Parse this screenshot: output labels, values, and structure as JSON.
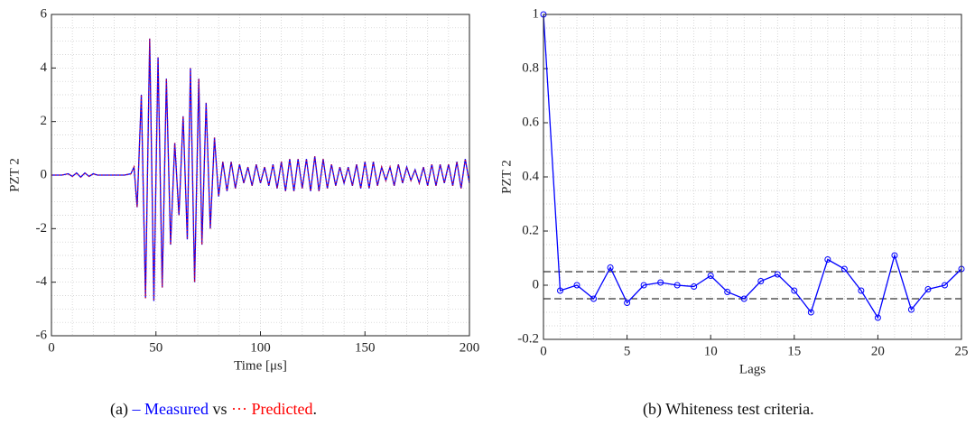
{
  "chart_data": [
    {
      "type": "line",
      "xlabel": "Time [μs]",
      "ylabel": "PZT 2",
      "x": [
        0,
        5,
        8,
        10,
        12,
        14,
        16,
        18,
        20,
        22,
        25,
        30,
        35,
        38,
        39.5,
        41,
        43,
        45,
        47,
        49,
        51,
        53,
        55,
        57,
        59,
        61,
        63,
        65,
        66.5,
        68.5,
        70.5,
        72,
        74,
        76,
        78,
        80,
        82,
        84,
        86,
        88,
        90,
        92,
        94,
        96,
        98,
        100,
        102,
        104,
        106,
        108,
        110,
        112,
        114,
        116,
        118,
        120,
        122,
        124,
        126,
        128,
        130,
        132,
        134,
        136,
        138,
        140,
        142,
        144,
        146,
        148,
        150,
        152,
        154,
        156,
        158,
        160,
        162,
        164,
        166,
        168,
        170,
        172,
        174,
        176,
        178,
        180,
        182,
        184,
        186,
        188,
        190,
        192,
        194,
        196,
        198,
        200
      ],
      "series": [
        {
          "name": "Measured",
          "color": "#0000ff",
          "dash": "solid",
          "values": [
            0,
            0,
            0.05,
            -0.05,
            0.08,
            -0.08,
            0.08,
            -0.05,
            0.05,
            0,
            0,
            0,
            0,
            0.05,
            0.3,
            -1.2,
            3.0,
            -4.6,
            5.1,
            -4.7,
            4.4,
            -4.2,
            3.6,
            -2.6,
            1.2,
            -1.5,
            2.2,
            -2.4,
            4.0,
            -4.0,
            3.6,
            -2.6,
            2.7,
            -2.0,
            1.4,
            -0.8,
            0.5,
            -0.6,
            0.5,
            -0.5,
            0.4,
            -0.3,
            0.3,
            -0.4,
            0.4,
            -0.3,
            0.3,
            -0.4,
            0.4,
            -0.5,
            0.5,
            -0.6,
            0.6,
            -0.6,
            0.6,
            -0.5,
            0.6,
            -0.6,
            0.7,
            -0.6,
            0.6,
            -0.5,
            0.4,
            -0.4,
            0.3,
            -0.3,
            0.3,
            -0.4,
            0.4,
            -0.5,
            0.5,
            -0.5,
            0.5,
            -0.4,
            0.3,
            -0.2,
            0.3,
            -0.4,
            0.4,
            -0.3,
            0.3,
            -0.2,
            0.2,
            -0.3,
            0.3,
            -0.4,
            0.4,
            -0.4,
            0.4,
            -0.3,
            0.4,
            -0.4,
            0.5,
            -0.5,
            0.6,
            -0.3
          ]
        },
        {
          "name": "Predicted",
          "color": "#ff0000",
          "dash": "dotted",
          "values": [
            0,
            0,
            0.05,
            -0.05,
            0.08,
            -0.08,
            0.08,
            -0.05,
            0.05,
            0,
            0,
            0,
            0,
            0.05,
            0.3,
            -1.2,
            3.0,
            -4.6,
            5.1,
            -4.7,
            4.4,
            -4.2,
            3.6,
            -2.6,
            1.2,
            -1.5,
            2.2,
            -2.4,
            4.0,
            -4.0,
            3.6,
            -2.6,
            2.7,
            -2.0,
            1.4,
            -0.8,
            0.5,
            -0.6,
            0.5,
            -0.5,
            0.4,
            -0.3,
            0.3,
            -0.4,
            0.4,
            -0.3,
            0.3,
            -0.4,
            0.4,
            -0.5,
            0.5,
            -0.6,
            0.6,
            -0.6,
            0.6,
            -0.5,
            0.6,
            -0.6,
            0.7,
            -0.6,
            0.6,
            -0.5,
            0.4,
            -0.4,
            0.3,
            -0.3,
            0.3,
            -0.4,
            0.4,
            -0.5,
            0.5,
            -0.5,
            0.5,
            -0.4,
            0.3,
            -0.2,
            0.3,
            -0.4,
            0.4,
            -0.3,
            0.3,
            -0.2,
            0.2,
            -0.3,
            0.3,
            -0.4,
            0.4,
            -0.4,
            0.4,
            -0.3,
            0.4,
            -0.4,
            0.5,
            -0.5,
            0.6,
            -0.3
          ]
        }
      ],
      "xlim": [
        0,
        200
      ],
      "ylim": [
        -6,
        6
      ],
      "xticks": [
        0,
        50,
        100,
        150,
        200
      ],
      "yticks": [
        -6,
        -4,
        -2,
        0,
        2,
        4,
        6
      ],
      "minor_xticks": [
        10,
        20,
        30,
        40,
        60,
        70,
        80,
        90,
        110,
        120,
        130,
        140,
        160,
        170,
        180,
        190
      ],
      "minor_yticks": [
        -5.5,
        -5,
        -4.5,
        -3.5,
        -3,
        -2.5,
        -1.5,
        -1,
        -0.5,
        0.5,
        1,
        1.5,
        2.5,
        3,
        3.5,
        4.5,
        5,
        5.5
      ],
      "grid": true,
      "caption": {
        "label": "(a)",
        "measured_marker": "–",
        "joiner": "vs",
        "predicted_marker": "···",
        "end": "."
      }
    },
    {
      "type": "line",
      "xlabel": "Lags",
      "ylabel": "PZT 2",
      "markers": "circle",
      "x": [
        0,
        1,
        2,
        3,
        4,
        5,
        6,
        7,
        8,
        9,
        10,
        11,
        12,
        13,
        14,
        15,
        16,
        17,
        18,
        19,
        20,
        21,
        22,
        23,
        24,
        25
      ],
      "series": [
        {
          "color": "#0000ff",
          "dash": "solid",
          "values": [
            1,
            -0.02,
            0,
            -0.05,
            0.065,
            -0.065,
            0,
            0.01,
            0,
            -0.005,
            0.035,
            -0.025,
            -0.05,
            0.015,
            0.04,
            -0.02,
            -0.1,
            0.095,
            0.06,
            -0.02,
            -0.12,
            0.11,
            -0.09,
            -0.015,
            0,
            0.06
          ]
        }
      ],
      "bounds": [
        0.05,
        -0.05
      ],
      "xlim": [
        0,
        25
      ],
      "ylim": [
        -0.2,
        1
      ],
      "xticks": [
        0,
        5,
        10,
        15,
        20,
        25
      ],
      "yticks": [
        -0.2,
        0,
        0.2,
        0.4,
        0.6,
        0.8,
        1
      ],
      "minor_xticks": [
        1,
        2,
        3,
        4,
        6,
        7,
        8,
        9,
        11,
        12,
        13,
        14,
        16,
        17,
        18,
        19,
        21,
        22,
        23,
        24
      ],
      "minor_yticks": [
        -0.15,
        -0.1,
        -0.05,
        0.05,
        0.1,
        0.15,
        0.25,
        0.3,
        0.35,
        0.45,
        0.5,
        0.55,
        0.65,
        0.7,
        0.75,
        0.85,
        0.9,
        0.95
      ],
      "grid": true,
      "caption": {
        "label": "(b)",
        "text": "Whiteness test criteria."
      }
    }
  ]
}
